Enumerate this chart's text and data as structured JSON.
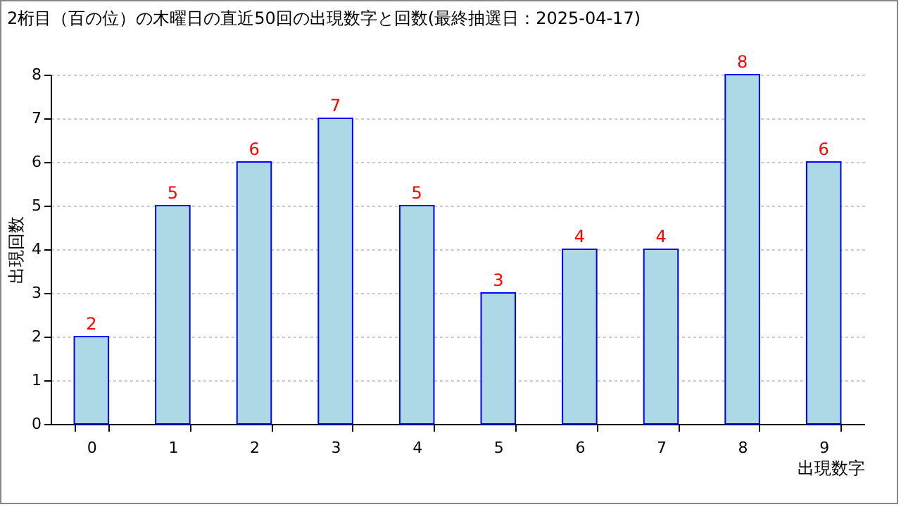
{
  "chart_data": {
    "type": "bar",
    "title": "2桁目（百の位）の木曜日の直近50回の出現数字と回数(最終抽選日：2025-04-17)",
    "xlabel": "出現数字",
    "ylabel": "出現回数",
    "categories": [
      "0",
      "1",
      "2",
      "3",
      "4",
      "5",
      "6",
      "7",
      "8",
      "9"
    ],
    "values": [
      2,
      5,
      6,
      7,
      5,
      3,
      4,
      4,
      8,
      6
    ],
    "color": "#add8e6",
    "ylim": [
      0,
      8
    ],
    "yticks": [
      0,
      1,
      2,
      3,
      4,
      5,
      6,
      7,
      8
    ],
    "grid": "y",
    "data_labels": true
  }
}
